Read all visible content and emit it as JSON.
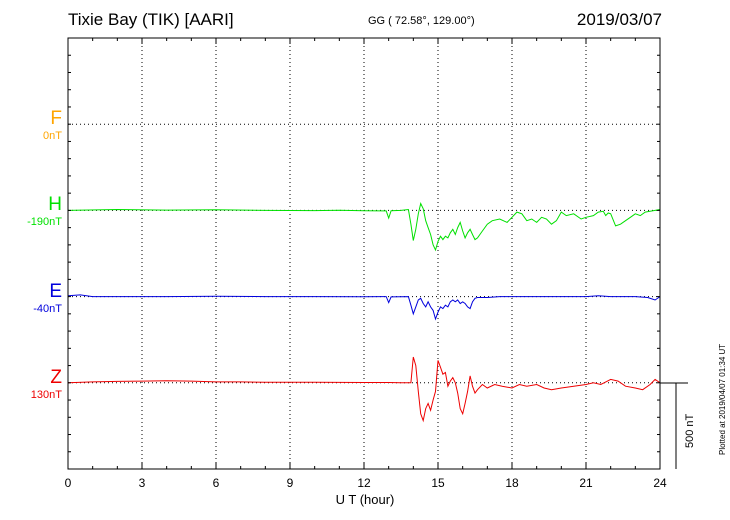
{
  "header": {
    "station": "Tixie Bay (TIK)  [AARI]",
    "coords": "GG ( 72.58°, 129.00°)",
    "date": "2019/03/07"
  },
  "plotted_note": "Plotted at 2019/04/07 01:34 UT",
  "chart_data": {
    "type": "line",
    "xlabel": "U T (hour)",
    "xlim": [
      0,
      24
    ],
    "xticks": [
      0,
      3,
      6,
      9,
      12,
      15,
      18,
      21,
      24
    ],
    "grid": true,
    "scale_bar": {
      "label": "500 nT",
      "value_nT": 500
    },
    "series": [
      {
        "name": "F",
        "baseline_label": "0nT",
        "color": "#ffa500",
        "visible": false,
        "baseline_row": 1,
        "points": []
      },
      {
        "name": "H",
        "baseline_label": "-190nT",
        "color": "#00e000",
        "baseline_row": 2,
        "points": [
          [
            0,
            0
          ],
          [
            2,
            5
          ],
          [
            4,
            2
          ],
          [
            6,
            4
          ],
          [
            8,
            0
          ],
          [
            10,
            -1
          ],
          [
            11,
            1
          ],
          [
            12,
            -2
          ],
          [
            12.9,
            -3
          ],
          [
            13.0,
            -45
          ],
          [
            13.1,
            -2
          ],
          [
            13.5,
            0
          ],
          [
            13.8,
            5
          ],
          [
            13.9,
            -80
          ],
          [
            14.0,
            -175
          ],
          [
            14.1,
            -110
          ],
          [
            14.2,
            -20
          ],
          [
            14.3,
            40
          ],
          [
            14.4,
            10
          ],
          [
            14.5,
            -60
          ],
          [
            14.6,
            -100
          ],
          [
            14.7,
            -140
          ],
          [
            14.8,
            -200
          ],
          [
            14.9,
            -230
          ],
          [
            15.0,
            -180
          ],
          [
            15.1,
            -150
          ],
          [
            15.2,
            -170
          ],
          [
            15.3,
            -150
          ],
          [
            15.4,
            -160
          ],
          [
            15.5,
            -130
          ],
          [
            15.6,
            -110
          ],
          [
            15.7,
            -140
          ],
          [
            15.8,
            -100
          ],
          [
            15.9,
            -70
          ],
          [
            16.0,
            -120
          ],
          [
            16.1,
            -160
          ],
          [
            16.2,
            -130
          ],
          [
            16.3,
            -110
          ],
          [
            16.4,
            -140
          ],
          [
            16.5,
            -170
          ],
          [
            16.6,
            -160
          ],
          [
            16.8,
            -120
          ],
          [
            17.0,
            -80
          ],
          [
            17.2,
            -60
          ],
          [
            17.5,
            -50
          ],
          [
            17.8,
            -70
          ],
          [
            18.0,
            -40
          ],
          [
            18.2,
            -10
          ],
          [
            18.4,
            -20
          ],
          [
            18.6,
            -60
          ],
          [
            18.8,
            -50
          ],
          [
            19.0,
            -70
          ],
          [
            19.2,
            -40
          ],
          [
            19.4,
            -50
          ],
          [
            19.6,
            -80
          ],
          [
            19.8,
            -60
          ],
          [
            20.0,
            -10
          ],
          [
            20.2,
            -30
          ],
          [
            20.5,
            -20
          ],
          [
            20.8,
            -50
          ],
          [
            21.0,
            -40
          ],
          [
            21.3,
            -30
          ],
          [
            21.5,
            -10
          ],
          [
            21.7,
            -5
          ],
          [
            21.8,
            -30
          ],
          [
            21.9,
            -15
          ],
          [
            22.0,
            -20
          ],
          [
            22.2,
            -90
          ],
          [
            22.4,
            -80
          ],
          [
            22.6,
            -60
          ],
          [
            22.8,
            -40
          ],
          [
            23.0,
            -20
          ],
          [
            23.2,
            -30
          ],
          [
            23.4,
            -10
          ],
          [
            23.6,
            -5
          ],
          [
            23.8,
            0
          ],
          [
            24.0,
            5
          ]
        ]
      },
      {
        "name": "E",
        "baseline_label": "-40nT",
        "color": "#0000dd",
        "baseline_row": 3,
        "points": [
          [
            0,
            5
          ],
          [
            0.5,
            10
          ],
          [
            1,
            0
          ],
          [
            2,
            0
          ],
          [
            4,
            0
          ],
          [
            6,
            2
          ],
          [
            8,
            0
          ],
          [
            10,
            0
          ],
          [
            12,
            -1
          ],
          [
            12.9,
            0
          ],
          [
            13.0,
            -35
          ],
          [
            13.1,
            -2
          ],
          [
            13.8,
            0
          ],
          [
            13.9,
            -50
          ],
          [
            14.0,
            -100
          ],
          [
            14.1,
            -60
          ],
          [
            14.2,
            -20
          ],
          [
            14.3,
            -10
          ],
          [
            14.4,
            -40
          ],
          [
            14.5,
            -60
          ],
          [
            14.6,
            -30
          ],
          [
            14.7,
            -60
          ],
          [
            14.8,
            -80
          ],
          [
            14.9,
            -130
          ],
          [
            15.0,
            -90
          ],
          [
            15.1,
            -60
          ],
          [
            15.2,
            -70
          ],
          [
            15.3,
            -50
          ],
          [
            15.4,
            -60
          ],
          [
            15.5,
            -30
          ],
          [
            15.6,
            -20
          ],
          [
            15.7,
            -30
          ],
          [
            15.8,
            -20
          ],
          [
            15.9,
            -40
          ],
          [
            16.0,
            -30
          ],
          [
            16.1,
            -40
          ],
          [
            16.2,
            -60
          ],
          [
            16.3,
            -70
          ],
          [
            16.4,
            -30
          ],
          [
            16.5,
            -10
          ],
          [
            16.6,
            -5
          ],
          [
            17.0,
            -5
          ],
          [
            17.5,
            0
          ],
          [
            18,
            0
          ],
          [
            19,
            0
          ],
          [
            20,
            0
          ],
          [
            21,
            0
          ],
          [
            21.5,
            5
          ],
          [
            22,
            0
          ],
          [
            22.5,
            0
          ],
          [
            23,
            0
          ],
          [
            23.5,
            -5
          ],
          [
            23.8,
            -20
          ],
          [
            24.0,
            0
          ]
        ]
      },
      {
        "name": "Z",
        "baseline_label": "130nT",
        "color": "#ee0000",
        "baseline_row": 4,
        "points": [
          [
            0,
            0
          ],
          [
            1,
            5
          ],
          [
            2,
            8
          ],
          [
            3,
            10
          ],
          [
            4,
            12
          ],
          [
            5,
            10
          ],
          [
            6,
            5
          ],
          [
            7,
            5
          ],
          [
            8,
            3
          ],
          [
            10,
            3
          ],
          [
            12,
            2
          ],
          [
            13.0,
            2
          ],
          [
            13.5,
            0
          ],
          [
            13.9,
            0
          ],
          [
            14.0,
            150
          ],
          [
            14.1,
            100
          ],
          [
            14.2,
            -50
          ],
          [
            14.3,
            -180
          ],
          [
            14.4,
            -220
          ],
          [
            14.5,
            -150
          ],
          [
            14.6,
            -120
          ],
          [
            14.7,
            -160
          ],
          [
            14.8,
            -100
          ],
          [
            14.9,
            -50
          ],
          [
            15.0,
            130
          ],
          [
            15.1,
            90
          ],
          [
            15.2,
            50
          ],
          [
            15.3,
            60
          ],
          [
            15.4,
            -20
          ],
          [
            15.5,
            10
          ],
          [
            15.6,
            30
          ],
          [
            15.7,
            0
          ],
          [
            15.8,
            -60
          ],
          [
            15.9,
            -150
          ],
          [
            16.0,
            -180
          ],
          [
            16.1,
            -120
          ],
          [
            16.2,
            -50
          ],
          [
            16.3,
            40
          ],
          [
            16.4,
            -20
          ],
          [
            16.5,
            -60
          ],
          [
            16.6,
            -40
          ],
          [
            16.8,
            -10
          ],
          [
            17.0,
            -30
          ],
          [
            17.3,
            -10
          ],
          [
            17.6,
            -20
          ],
          [
            18.0,
            -30
          ],
          [
            18.3,
            -10
          ],
          [
            18.6,
            -20
          ],
          [
            19.0,
            -10
          ],
          [
            19.3,
            -30
          ],
          [
            19.6,
            -40
          ],
          [
            20.0,
            -30
          ],
          [
            20.5,
            -20
          ],
          [
            21.0,
            -10
          ],
          [
            21.3,
            0
          ],
          [
            21.6,
            -10
          ],
          [
            22.0,
            20
          ],
          [
            22.3,
            10
          ],
          [
            22.6,
            -20
          ],
          [
            23.0,
            -30
          ],
          [
            23.3,
            -40
          ],
          [
            23.6,
            -10
          ],
          [
            23.8,
            20
          ],
          [
            24.0,
            0
          ]
        ]
      }
    ]
  }
}
